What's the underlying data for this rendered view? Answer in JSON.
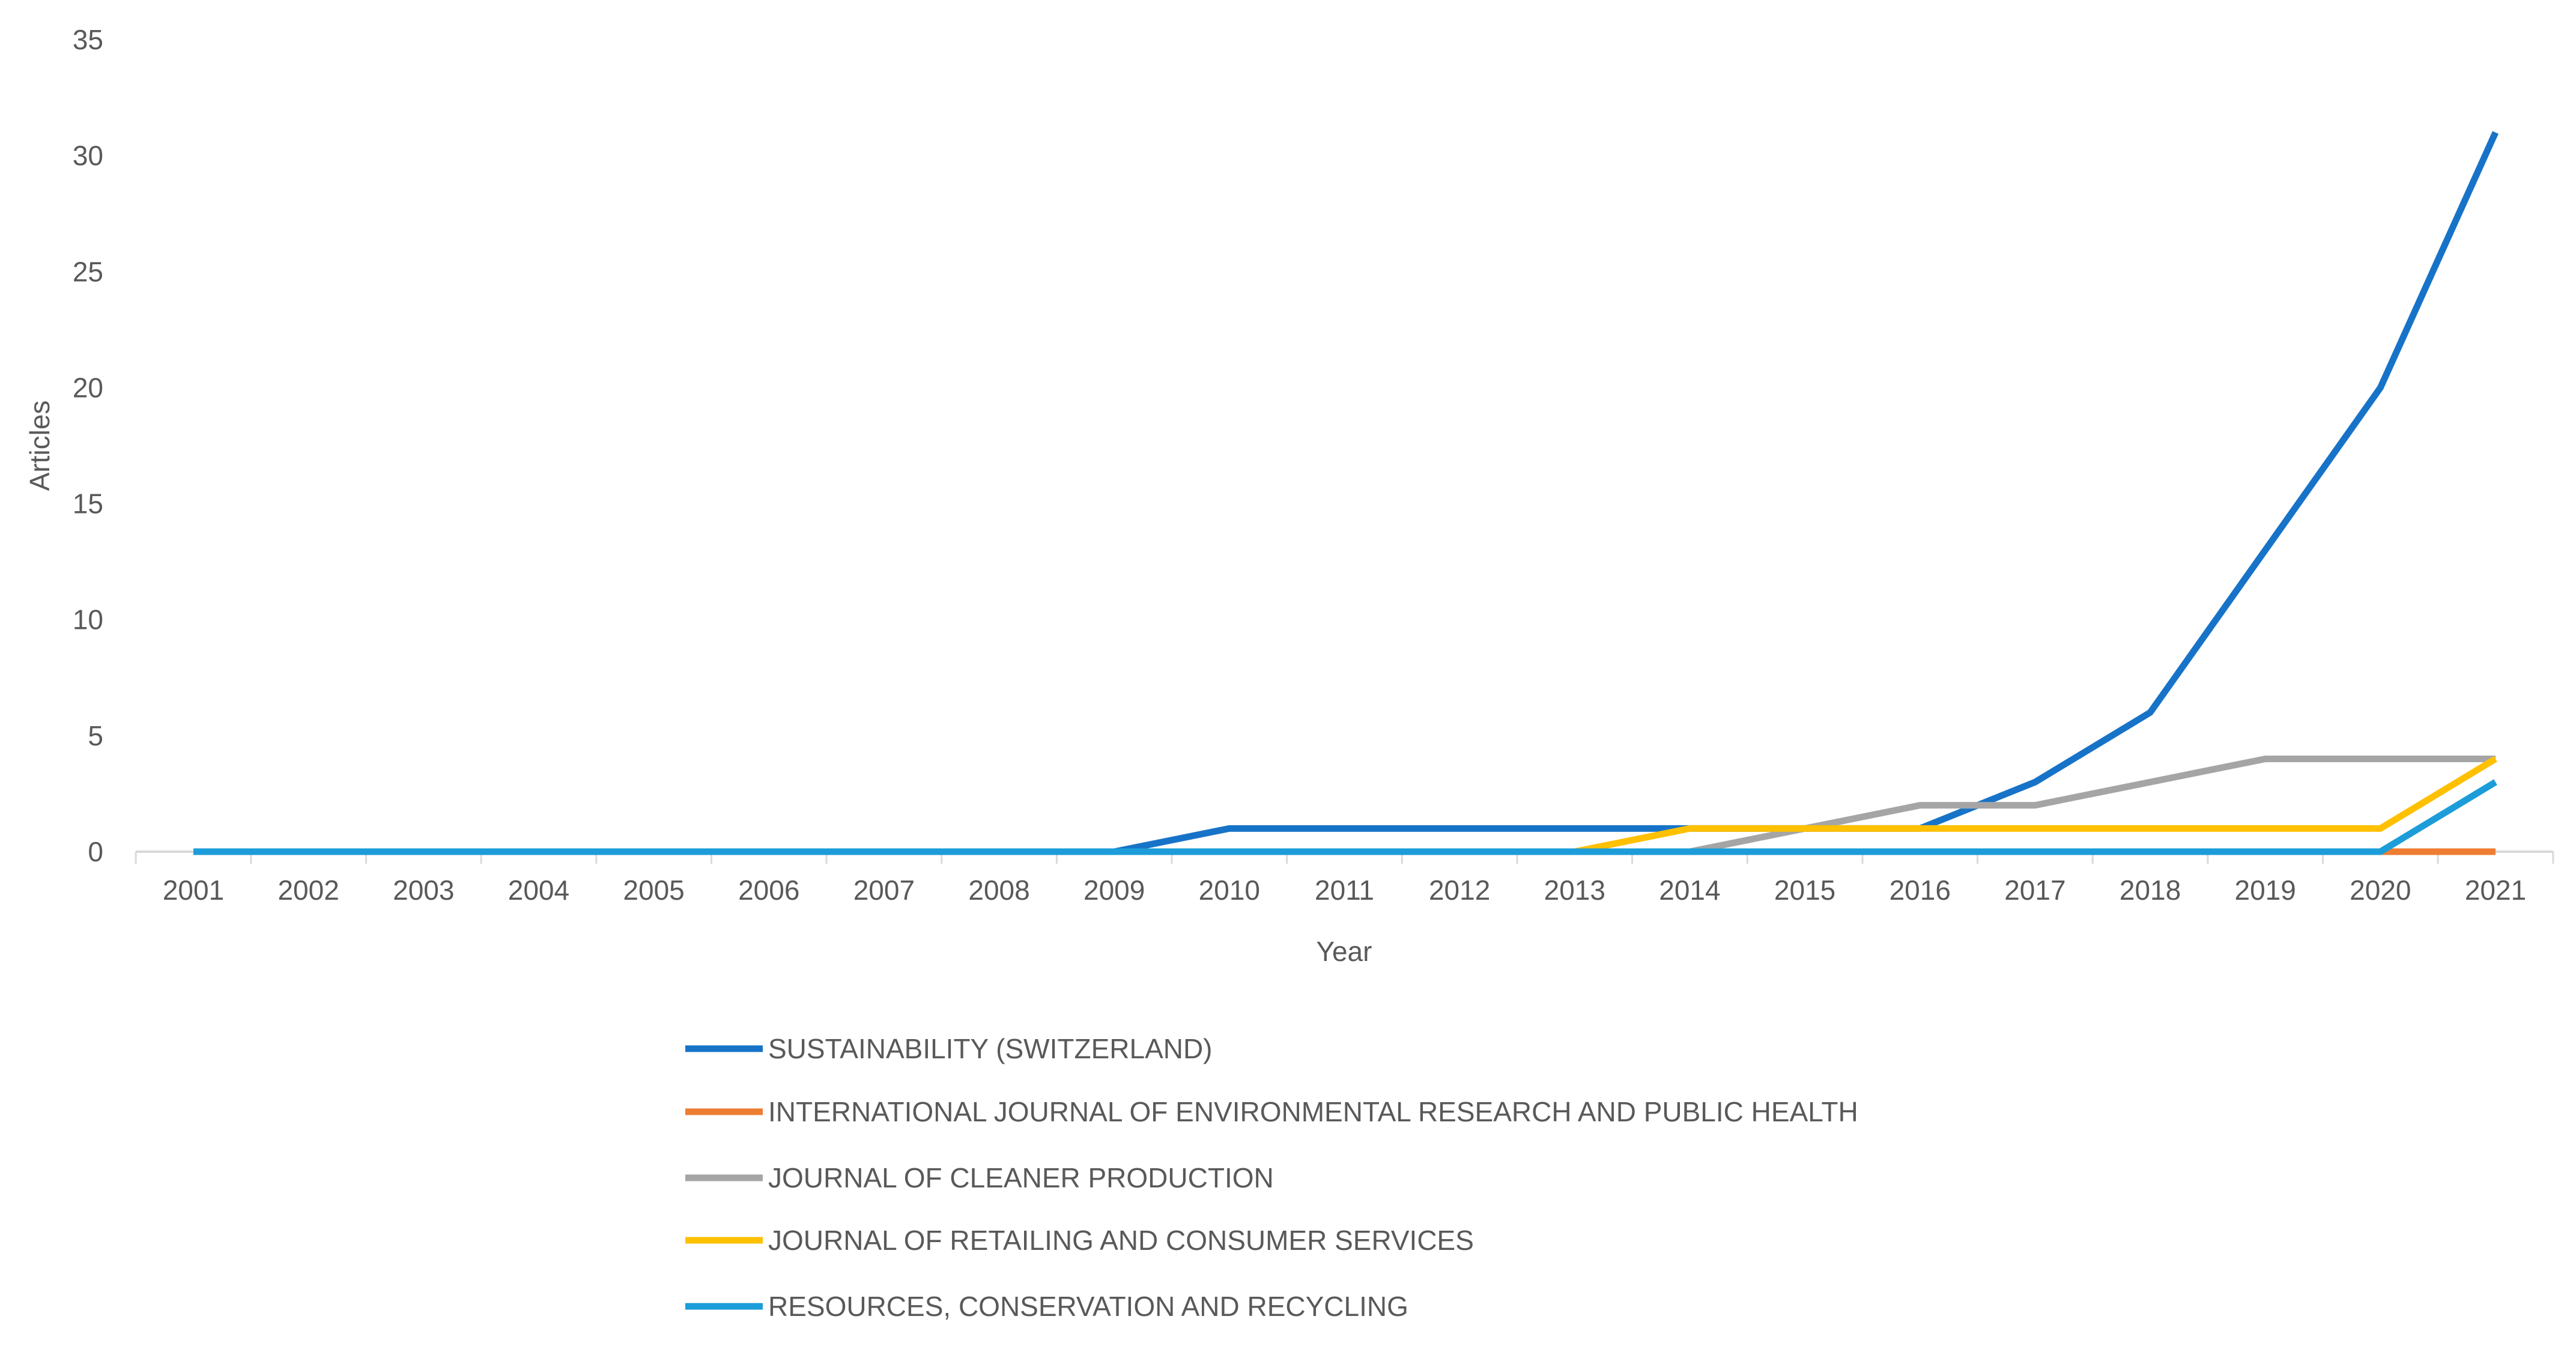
{
  "chart_data": {
    "type": "line",
    "title": "",
    "xlabel": "Year",
    "ylabel": "Articles",
    "ylim": [
      0,
      35
    ],
    "yticks": [
      0,
      5,
      10,
      15,
      20,
      25,
      30,
      35
    ],
    "grid": false,
    "legend_placement": "bottom",
    "categories": [
      "2001",
      "2002",
      "2003",
      "2004",
      "2005",
      "2006",
      "2007",
      "2008",
      "2009",
      "2010",
      "2011",
      "2012",
      "2013",
      "2014",
      "2015",
      "2016",
      "2017",
      "2018",
      "2019",
      "2020",
      "2021"
    ],
    "series": [
      {
        "name": "SUSTAINABILITY (SWITZERLAND)",
        "color": "#1773C8",
        "values": [
          0,
          0,
          0,
          0,
          0,
          0,
          0,
          0,
          0,
          1,
          1,
          1,
          1,
          1,
          1,
          1,
          3,
          6,
          13,
          20,
          31
        ]
      },
      {
        "name": "INTERNATIONAL JOURNAL OF ENVIRONMENTAL RESEARCH AND PUBLIC HEALTH",
        "color": "#ED7D31",
        "values": [
          0,
          0,
          0,
          0,
          0,
          0,
          0,
          0,
          0,
          0,
          0,
          0,
          0,
          0,
          0,
          0,
          0,
          0,
          0,
          0,
          0
        ]
      },
      {
        "name": "JOURNAL OF CLEANER PRODUCTION",
        "color": "#A5A5A5",
        "values": [
          0,
          0,
          0,
          0,
          0,
          0,
          0,
          0,
          0,
          0,
          0,
          0,
          0,
          0,
          1,
          2,
          2,
          3,
          4,
          4,
          4
        ]
      },
      {
        "name": "JOURNAL OF RETAILING AND CONSUMER SERVICES",
        "color": "#FFC000",
        "values": [
          0,
          0,
          0,
          0,
          0,
          0,
          0,
          0,
          0,
          0,
          0,
          0,
          0,
          1,
          1,
          1,
          1,
          1,
          1,
          1,
          4
        ]
      },
      {
        "name": "RESOURCES, CONSERVATION AND RECYCLING",
        "color": "#1C9DD9",
        "values": [
          0,
          0,
          0,
          0,
          0,
          0,
          0,
          0,
          0,
          0,
          0,
          0,
          0,
          0,
          0,
          0,
          0,
          0,
          0,
          0,
          3
        ]
      }
    ]
  }
}
